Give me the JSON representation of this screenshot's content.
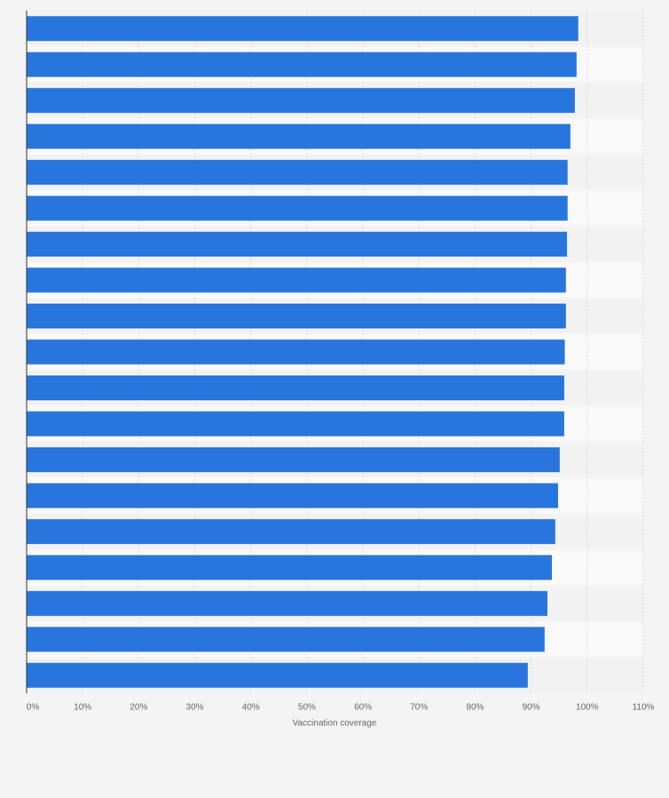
{
  "chart_data": {
    "type": "barh",
    "x_label": "Vaccination coverage",
    "categories": [
      null,
      null,
      null,
      null,
      null,
      null,
      null,
      null,
      null,
      null,
      null,
      null,
      null,
      null,
      null,
      null,
      null,
      null,
      null
    ],
    "values": [
      98.4,
      98.1,
      97.8,
      97.0,
      96.5,
      96.5,
      96.4,
      96.2,
      96.2,
      96.0,
      95.9,
      95.9,
      95.1,
      94.8,
      94.3,
      93.7,
      92.9,
      92.4,
      89.4
    ],
    "color": "#2876dd",
    "xlim": [
      0,
      110
    ],
    "xticks": [
      {
        "value": 0,
        "label": "0%"
      },
      {
        "value": 10,
        "label": "10%"
      },
      {
        "value": 20,
        "label": "20%"
      },
      {
        "value": 30,
        "label": "30%"
      },
      {
        "value": 40,
        "label": "40%"
      },
      {
        "value": 50,
        "label": "50%"
      },
      {
        "value": 60,
        "label": "60%"
      },
      {
        "value": 70,
        "label": "70%"
      },
      {
        "value": 80,
        "label": "80%"
      },
      {
        "value": 90,
        "label": "90%"
      },
      {
        "value": 100,
        "label": "100%"
      },
      {
        "value": 110,
        "label": "110%"
      }
    ],
    "grid": true
  }
}
